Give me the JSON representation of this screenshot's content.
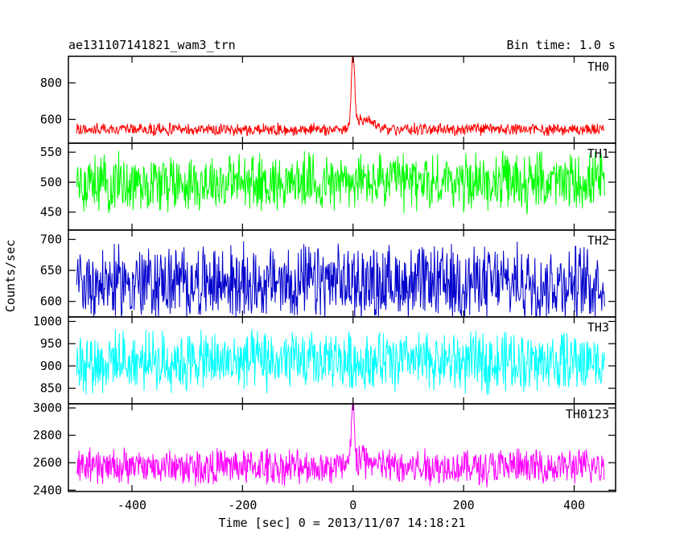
{
  "header": {
    "title": "ae131107141821_wam3_trn",
    "bin_time": "Bin time: 1.0 s"
  },
  "axes": {
    "ylabel": "Counts/sec",
    "xlabel": "Time [sec] 0 = 2013/11/07 14:18:21"
  },
  "chart_data": [
    {
      "type": "line",
      "name": "TH0",
      "color": "#ff0000",
      "xlim": [
        -515,
        475
      ],
      "ylim": [
        470,
        945
      ],
      "yticks": [
        600,
        800
      ],
      "xticks": [
        -400,
        -200,
        0,
        200,
        400
      ],
      "x_range": [
        -500,
        455
      ],
      "baseline": 545,
      "noise_amplitude": 45,
      "features": [
        {
          "x": 0,
          "peak": 940,
          "width": 3
        },
        {
          "x": 20,
          "peak": 600,
          "width": 15
        }
      ]
    },
    {
      "type": "line",
      "name": "TH1",
      "color": "#00ff00",
      "xlim": [
        -515,
        475
      ],
      "ylim": [
        420,
        565
      ],
      "yticks": [
        450,
        500,
        550
      ],
      "xticks": [
        -400,
        -200,
        0,
        200,
        400
      ],
      "x_range": [
        -500,
        455
      ],
      "baseline": 500,
      "noise_amplitude": 65,
      "features": []
    },
    {
      "type": "line",
      "name": "TH2",
      "color": "#0000cc",
      "xlim": [
        -515,
        475
      ],
      "ylim": [
        575,
        715
      ],
      "yticks": [
        600,
        650,
        700
      ],
      "xticks": [
        -400,
        -200,
        0,
        200,
        400
      ],
      "x_range": [
        -500,
        455
      ],
      "baseline": 630,
      "noise_amplitude": 80,
      "features": []
    },
    {
      "type": "line",
      "name": "TH3",
      "color": "#00ffff",
      "xlim": [
        -515,
        475
      ],
      "ylim": [
        815,
        1010
      ],
      "yticks": [
        850,
        900,
        950,
        1000
      ],
      "xticks": [
        -400,
        -200,
        0,
        200,
        400
      ],
      "x_range": [
        -500,
        455
      ],
      "baseline": 910,
      "noise_amplitude": 90,
      "features": []
    },
    {
      "type": "line",
      "name": "TH0123",
      "color": "#ff00ff",
      "xlim": [
        -515,
        475
      ],
      "ylim": [
        2390,
        3030
      ],
      "yticks": [
        2400,
        2600,
        2800,
        3000
      ],
      "xticks": [
        -400,
        -200,
        0,
        200,
        400
      ],
      "xtick_labels": [
        "-400",
        "-200",
        "0",
        "200",
        "400"
      ],
      "x_range": [
        -500,
        455
      ],
      "baseline": 2570,
      "noise_amplitude": 180,
      "features": [
        {
          "x": 0,
          "peak": 3000,
          "width": 3
        },
        {
          "x": 20,
          "peak": 2620,
          "width": 15
        }
      ]
    }
  ]
}
